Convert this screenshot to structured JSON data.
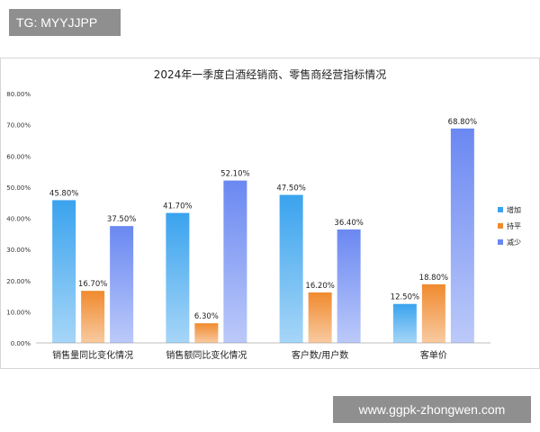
{
  "watermark": "TG: MYYJJPP",
  "site": "www.ggpk-zhongwen.com",
  "colors": {
    "increase": "#3aa3ee",
    "flat": "#f08a2e",
    "decrease": "#6a88f2"
  },
  "chart_data": {
    "type": "bar",
    "title": "2024年一季度白酒经销商、零售商经营指标情况",
    "categories": [
      "销售量同比变化情况",
      "销售额同比变化情况",
      "客户数/用户数",
      "客单价"
    ],
    "series": [
      {
        "name": "增加",
        "values": [
          45.8,
          41.7,
          47.5,
          12.5
        ]
      },
      {
        "name": "持平",
        "values": [
          16.7,
          6.3,
          16.2,
          18.8
        ]
      },
      {
        "name": "减少",
        "values": [
          37.5,
          52.1,
          36.4,
          68.8
        ]
      }
    ],
    "value_labels": [
      [
        "45.80%",
        "41.70%",
        "47.50%",
        "12.50%"
      ],
      [
        "16.70%",
        "6.30%",
        "16.20%",
        "18.80%"
      ],
      [
        "37.50%",
        "52.10%",
        "36.40%",
        "68.80%"
      ]
    ],
    "yticks": [
      "0.00%",
      "10.00%",
      "20.00%",
      "30.00%",
      "40.00%",
      "50.00%",
      "60.00%",
      "70.00%",
      "80.00%"
    ],
    "ylim": [
      0,
      80
    ],
    "legend_position": "right",
    "grid": false
  }
}
